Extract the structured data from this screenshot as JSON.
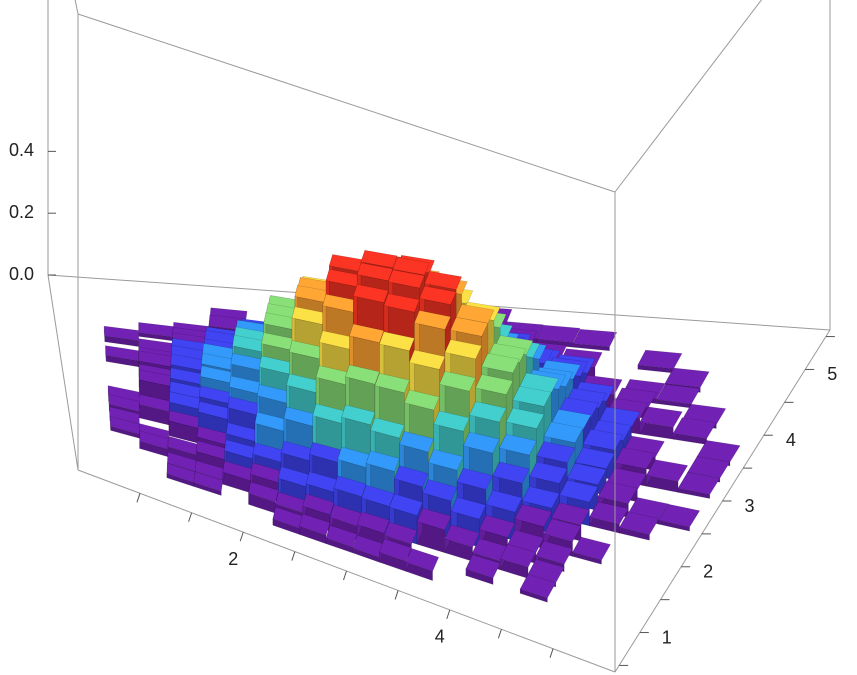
{
  "chart_data": {
    "type": "histogram3d",
    "title": "",
    "xlabel": "",
    "ylabel": "",
    "zlabel": "",
    "xlim": [
      0.4,
      5.6
    ],
    "ylim": [
      0.4,
      5.6
    ],
    "zlim": [
      0,
      0.55
    ],
    "x_ticks": [
      2,
      4
    ],
    "x_tick_labels": [
      "2",
      "4"
    ],
    "y_ticks": [
      1,
      2,
      3,
      4,
      5
    ],
    "y_tick_labels": [
      "1",
      "2",
      "3",
      "4",
      "5"
    ],
    "z_ticks": [
      0.0,
      0.2,
      0.4
    ],
    "z_tick_labels": [
      "0.0",
      "0.2",
      "0.4"
    ],
    "grid": false,
    "legend": "none",
    "color_scheme": [
      "#6a1fa8",
      "#3b3fe0",
      "#2f8fe8",
      "#3fc0c0",
      "#7fcf6f",
      "#e8d040",
      "#f29a30",
      "#e83020"
    ],
    "bin_width": 0.25,
    "peak": {
      "x": 3.0,
      "y": 3.0,
      "z": 0.52
    },
    "spread": 0.85
  }
}
